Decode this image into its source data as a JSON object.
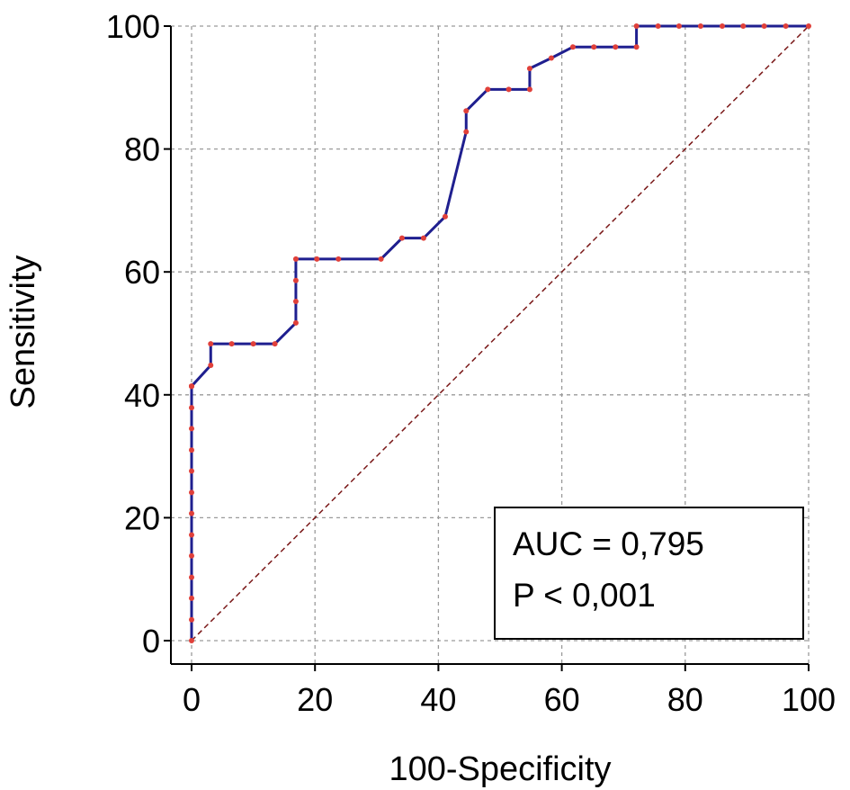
{
  "chart_data": {
    "type": "line",
    "xlabel": "100-Specificity",
    "ylabel": "Sensitivity",
    "xlim": [
      0,
      100
    ],
    "ylim": [
      0,
      100
    ],
    "x_ticks": [
      "0",
      "20",
      "40",
      "60",
      "80",
      "100"
    ],
    "y_ticks": [
      "0",
      "20",
      "40",
      "60",
      "80",
      "100"
    ],
    "grid": true,
    "series": [
      {
        "color": "#1f1f8f",
        "marker_color": "#e0403a",
        "x": [
          0,
          0,
          0,
          0,
          0,
          0,
          0,
          0,
          0,
          0,
          0,
          0,
          0,
          0,
          0,
          0,
          3.1,
          3.1,
          6.5,
          10,
          13.5,
          16.9,
          16.9,
          16.9,
          16.9,
          20.3,
          23.8,
          30.7,
          34.1,
          37.6,
          41.1,
          44.5,
          44.5,
          48,
          51.4,
          54.8,
          54.8,
          58.3,
          61.8,
          65.2,
          68.7,
          72.1,
          72.1,
          75.6,
          79,
          82.5,
          86,
          89.4,
          92.8,
          96.3,
          100
        ],
        "y": [
          0,
          3.4,
          6.9,
          10.3,
          13.8,
          17.2,
          20.7,
          24.1,
          27.6,
          31,
          34.5,
          37.9,
          41.4,
          41.4,
          41.4,
          41.4,
          44.8,
          48.3,
          48.3,
          48.3,
          48.3,
          51.7,
          55.2,
          58.6,
          62.1,
          62.1,
          62.1,
          62.1,
          65.5,
          65.5,
          69,
          82.8,
          86.2,
          89.7,
          89.7,
          89.7,
          93.1,
          94.8,
          96.6,
          96.6,
          96.6,
          96.6,
          100,
          100,
          100,
          100,
          100,
          100,
          100,
          100,
          100
        ]
      }
    ],
    "reference_line": {
      "x": [
        0,
        100
      ],
      "y": [
        0,
        100
      ],
      "color": "#7a1818",
      "style": "dashed"
    },
    "annotations": [
      "AUC = 0,795",
      "P < 0,001"
    ],
    "annotation_placement": "bottom-right"
  }
}
